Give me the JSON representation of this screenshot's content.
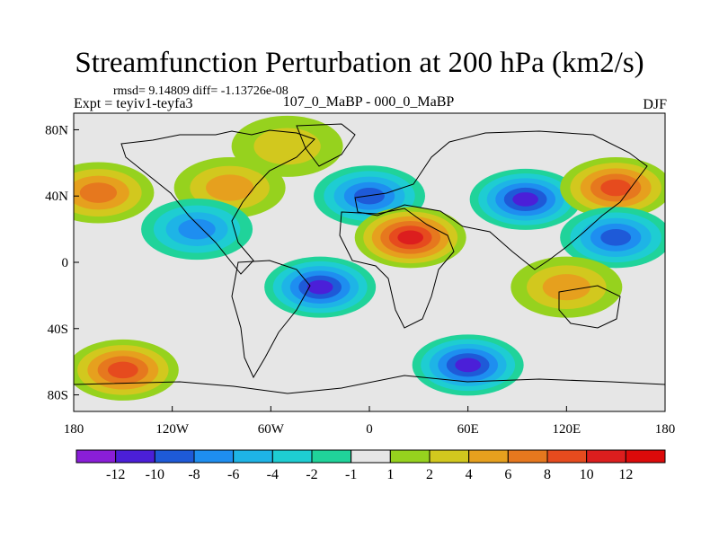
{
  "title": "Streamfunction Perturbation at 200 hPa (km2/s)",
  "stats": "rmsd= 9.14809 diff= -1.13726e-08",
  "experiment": "Expt = teyiv1-teyfa3",
  "subtitle": "107_0_MaBP - 000_0_MaBP",
  "season": "DJF",
  "chart_data": {
    "type": "heatmap",
    "x_ticks": [
      "180",
      "120W",
      "60W",
      "0",
      "60E",
      "120E",
      "180"
    ],
    "y_ticks": [
      "80N",
      "40N",
      "0",
      "40S",
      "80S"
    ],
    "xlim": [
      -180,
      180
    ],
    "ylim": [
      -90,
      90
    ],
    "contour_levels": [
      -12,
      -10,
      -8,
      -6,
      -4,
      -2,
      -1,
      1,
      2,
      4,
      6,
      8,
      10,
      12
    ],
    "colorbar_labels": [
      "-12",
      "-10",
      "-8",
      "-6",
      "-4",
      "-2",
      "-1",
      "1",
      "2",
      "4",
      "6",
      "8",
      "10",
      "12"
    ],
    "colorbar_colors": [
      "#8a1ed8",
      "#4b1fd8",
      "#1e5ad8",
      "#1e8ef0",
      "#1eb4e6",
      "#1ecdd2",
      "#20d39a",
      "#e6e6e6",
      "#96d21e",
      "#d2c81e",
      "#e6a01e",
      "#e6781e",
      "#e64b1e",
      "#dc1e1e",
      "#dc0a0a"
    ],
    "features": [
      {
        "lon": -165,
        "lat": 42,
        "value": 9
      },
      {
        "lon": -85,
        "lat": 45,
        "value": 6
      },
      {
        "lon": -50,
        "lat": 70,
        "value": 4
      },
      {
        "lon": -105,
        "lat": 20,
        "value": -9
      },
      {
        "lon": 0,
        "lat": 40,
        "value": -11
      },
      {
        "lon": 25,
        "lat": 15,
        "value": 12
      },
      {
        "lon": 95,
        "lat": 38,
        "value": -12
      },
      {
        "lon": 150,
        "lat": 45,
        "value": 10
      },
      {
        "lon": 150,
        "lat": 15,
        "value": -10
      },
      {
        "lon": -30,
        "lat": -15,
        "value": -12
      },
      {
        "lon": -150,
        "lat": -65,
        "value": 11
      },
      {
        "lon": 60,
        "lat": -62,
        "value": -12
      },
      {
        "lon": 120,
        "lat": -15,
        "value": 6
      }
    ]
  }
}
